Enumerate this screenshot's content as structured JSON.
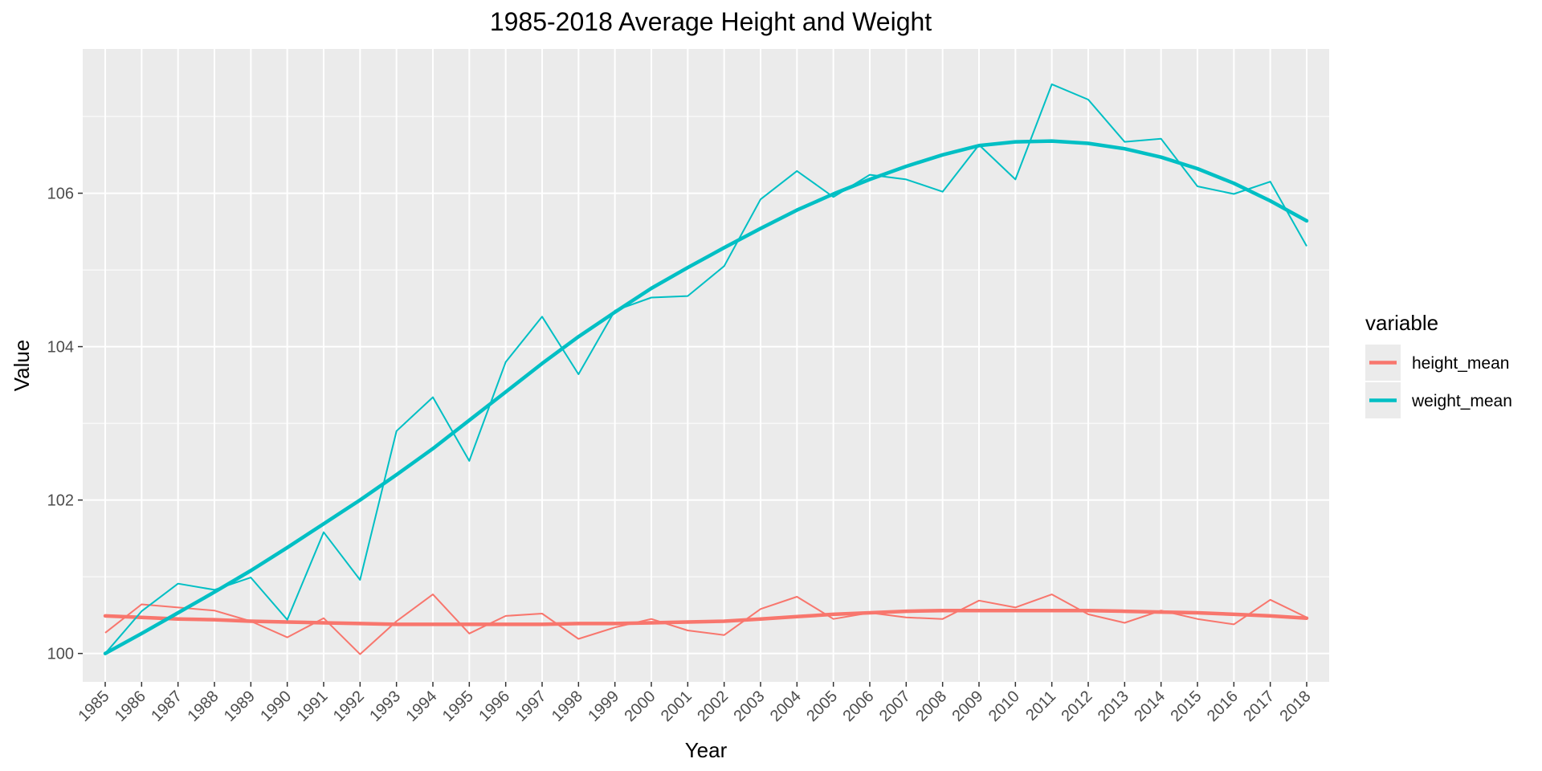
{
  "chart_data": {
    "type": "line",
    "title": "1985-2018 Average Height and Weight",
    "xlabel": "Year",
    "ylabel": "Value",
    "x": [
      1985,
      1986,
      1987,
      1988,
      1989,
      1990,
      1991,
      1992,
      1993,
      1994,
      1995,
      1996,
      1997,
      1998,
      1999,
      2000,
      2001,
      2002,
      2003,
      2004,
      2005,
      2006,
      2007,
      2008,
      2009,
      2010,
      2011,
      2012,
      2013,
      2014,
      2015,
      2016,
      2017,
      2018
    ],
    "yticks": [
      100,
      102,
      104,
      106
    ],
    "ylim": [
      99.63,
      107.88
    ],
    "grid": true,
    "legend": {
      "title": "variable",
      "position": "right"
    },
    "series": [
      {
        "name": "height_mean",
        "color": "#F8766D",
        "values": [
          100.27,
          100.64,
          100.6,
          100.56,
          100.42,
          100.21,
          100.46,
          99.99,
          100.42,
          100.77,
          100.26,
          100.49,
          100.52,
          100.19,
          100.34,
          100.45,
          100.3,
          100.24,
          100.58,
          100.74,
          100.45,
          100.53,
          100.47,
          100.45,
          100.69,
          100.6,
          100.77,
          100.51,
          100.4,
          100.56,
          100.45,
          100.38,
          100.7,
          100.47
        ],
        "smooth": [
          100.49,
          100.47,
          100.45,
          100.44,
          100.42,
          100.41,
          100.4,
          100.39,
          100.38,
          100.38,
          100.38,
          100.38,
          100.38,
          100.39,
          100.39,
          100.4,
          100.41,
          100.42,
          100.45,
          100.48,
          100.51,
          100.53,
          100.55,
          100.56,
          100.56,
          100.56,
          100.56,
          100.56,
          100.55,
          100.54,
          100.53,
          100.51,
          100.49,
          100.46
        ]
      },
      {
        "name": "weight_mean",
        "color": "#00BFC4",
        "values": [
          100.0,
          100.55,
          100.91,
          100.83,
          100.99,
          100.44,
          101.58,
          100.96,
          102.9,
          103.34,
          102.51,
          103.8,
          104.39,
          103.64,
          104.47,
          104.64,
          104.66,
          105.05,
          105.92,
          106.29,
          105.95,
          106.24,
          106.18,
          106.02,
          106.63,
          106.18,
          107.42,
          107.22,
          106.67,
          106.71,
          106.09,
          105.99,
          106.15,
          105.31
        ],
        "smooth": [
          100.0,
          100.26,
          100.53,
          100.8,
          101.08,
          101.38,
          101.69,
          102.0,
          102.33,
          102.67,
          103.04,
          103.41,
          103.78,
          104.13,
          104.45,
          104.76,
          105.03,
          105.29,
          105.54,
          105.78,
          105.99,
          106.18,
          106.35,
          106.5,
          106.62,
          106.67,
          106.68,
          106.65,
          106.58,
          106.47,
          106.32,
          106.13,
          105.9,
          105.64
        ]
      }
    ]
  }
}
